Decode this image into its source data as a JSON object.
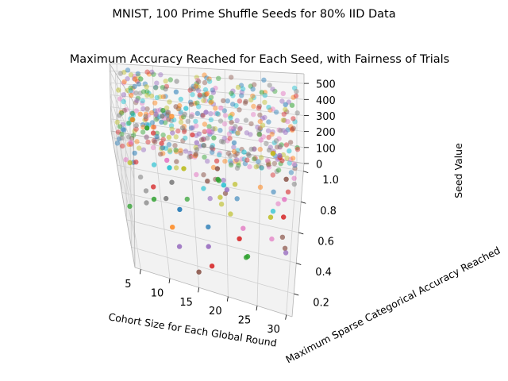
{
  "chart_data": {
    "type": "scatter",
    "projection": "3d",
    "suptitle": "MNIST, 100 Prime Shuffle Seeds for 80% IID Data",
    "title": "Maximum Accuracy Reached for Each Seed, with Fairness of Trials",
    "xlabel": "Cohort Size for Each Global Round",
    "ylabel": "Maximum Sparse Categorical Accuracy Reached",
    "zlabel": "Seed Value",
    "xlim": [
      4,
      31
    ],
    "ylim": [
      0.05,
      1.05
    ],
    "zlim": [
      0,
      560
    ],
    "x_ticks": [
      "5",
      "10",
      "15",
      "20",
      "25",
      "30"
    ],
    "y_ticks": [
      "0.2",
      "0.4",
      "0.6",
      "0.8",
      "1.0"
    ],
    "z_ticks": [
      "0",
      "100",
      "200",
      "300",
      "400",
      "500"
    ],
    "grid": true,
    "marker_alpha_note": "semi-transparent markers, depth shaded",
    "palette": [
      "#1f77b4",
      "#ff7f0e",
      "#2ca02c",
      "#d62728",
      "#9467bd",
      "#8c564b",
      "#e377c2",
      "#7f7f7f",
      "#bcbd22",
      "#17becf"
    ],
    "x_values": [
      5,
      6,
      7,
      8,
      9,
      10,
      11,
      12,
      13,
      14,
      15,
      16,
      17,
      18,
      19,
      20,
      21,
      22,
      23,
      24,
      25,
      26,
      27,
      28,
      29,
      30
    ],
    "seeds": [
      2,
      3,
      5,
      7,
      11,
      13,
      17,
      19,
      23,
      29,
      31,
      37,
      41,
      43,
      47,
      53,
      59,
      61,
      67,
      71,
      73,
      79,
      83,
      89,
      97,
      101,
      103,
      107,
      109,
      113,
      127,
      131,
      137,
      139,
      149,
      151,
      157,
      163,
      167,
      173,
      179,
      181,
      191,
      193,
      197,
      199,
      211,
      223,
      227,
      229,
      233,
      239,
      241,
      251,
      257,
      263,
      269,
      271,
      277,
      281,
      283,
      293,
      307,
      311,
      313,
      317,
      331,
      337,
      347,
      349,
      353,
      359,
      367,
      373,
      379,
      383,
      389,
      397,
      401,
      409,
      419,
      421,
      431,
      433,
      439,
      443,
      449,
      457,
      461,
      463,
      467,
      479,
      487,
      491,
      499,
      503,
      509,
      521,
      523,
      541
    ]
  }
}
